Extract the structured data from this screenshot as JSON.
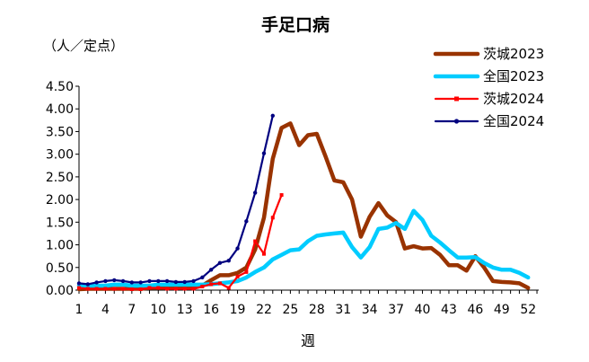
{
  "chart_data": {
    "type": "line",
    "title": "手足口病",
    "ylabel": "（人／定点）",
    "xlabel": "週",
    "ylim": [
      0,
      4.5
    ],
    "yticks": [
      "0.00",
      "0.50",
      "1.00",
      "1.50",
      "2.00",
      "2.50",
      "3.00",
      "3.50",
      "4.00",
      "4.50"
    ],
    "xticks": [
      "1",
      "4",
      "7",
      "10",
      "13",
      "16",
      "19",
      "22",
      "25",
      "28",
      "31",
      "34",
      "37",
      "40",
      "43",
      "46",
      "49",
      "52"
    ],
    "grid": false,
    "legend": "top-right",
    "series": [
      {
        "name": "茨城2023",
        "color": "#993300",
        "x": [
          1,
          2,
          3,
          4,
          5,
          6,
          7,
          8,
          9,
          10,
          11,
          12,
          13,
          14,
          15,
          16,
          17,
          18,
          19,
          20,
          21,
          22,
          23,
          24,
          25,
          26,
          27,
          28,
          29,
          30,
          31,
          32,
          33,
          34,
          35,
          36,
          37,
          38,
          39,
          40,
          41,
          42,
          43,
          44,
          45,
          46,
          47,
          48,
          49,
          50,
          51,
          52
        ],
        "values": [
          0.02,
          0.03,
          0.03,
          0.03,
          0.03,
          0.03,
          0.03,
          0.03,
          0.05,
          0.05,
          0.05,
          0.05,
          0.05,
          0.05,
          0.1,
          0.22,
          0.33,
          0.33,
          0.38,
          0.5,
          0.9,
          1.6,
          2.9,
          3.58,
          3.68,
          3.2,
          3.42,
          3.45,
          2.95,
          2.42,
          2.38,
          2.0,
          1.18,
          1.62,
          1.92,
          1.65,
          1.5,
          0.92,
          0.97,
          0.92,
          0.93,
          0.78,
          0.55,
          0.55,
          0.43,
          0.75,
          0.5,
          0.2,
          0.18,
          0.17,
          0.15,
          0.05
        ]
      },
      {
        "name": "全国2023",
        "color": "#00ccff",
        "x": [
          1,
          2,
          3,
          4,
          5,
          6,
          7,
          8,
          9,
          10,
          11,
          12,
          13,
          14,
          15,
          16,
          17,
          18,
          19,
          20,
          21,
          22,
          23,
          24,
          25,
          26,
          27,
          28,
          29,
          30,
          31,
          32,
          33,
          34,
          35,
          36,
          37,
          38,
          39,
          40,
          41,
          42,
          43,
          44,
          45,
          46,
          47,
          48,
          49,
          50,
          51,
          52
        ],
        "values": [
          0.1,
          0.1,
          0.1,
          0.1,
          0.12,
          0.12,
          0.1,
          0.1,
          0.1,
          0.12,
          0.12,
          0.12,
          0.12,
          0.12,
          0.12,
          0.13,
          0.15,
          0.17,
          0.2,
          0.28,
          0.4,
          0.5,
          0.68,
          0.78,
          0.88,
          0.9,
          1.08,
          1.2,
          1.23,
          1.25,
          1.27,
          0.95,
          0.72,
          0.95,
          1.35,
          1.38,
          1.48,
          1.35,
          1.75,
          1.55,
          1.2,
          1.05,
          0.88,
          0.72,
          0.72,
          0.73,
          0.6,
          0.5,
          0.45,
          0.45,
          0.38,
          0.28
        ]
      },
      {
        "name": "茨城2024",
        "color": "#ff0000",
        "x": [
          1,
          2,
          3,
          4,
          5,
          6,
          7,
          8,
          9,
          10,
          11,
          12,
          13,
          14,
          15,
          16,
          17,
          18,
          19,
          20,
          21,
          22,
          23,
          24
        ],
        "values": [
          0.05,
          0.03,
          0.03,
          0.03,
          0.03,
          0.03,
          0.02,
          0.02,
          0.05,
          0.05,
          0.03,
          0.03,
          0.03,
          0.03,
          0.08,
          0.13,
          0.15,
          0.05,
          0.3,
          0.4,
          1.08,
          0.8,
          1.6,
          2.1
        ]
      },
      {
        "name": "全国2024",
        "color": "#000080",
        "x": [
          1,
          2,
          3,
          4,
          5,
          6,
          7,
          8,
          9,
          10,
          11,
          12,
          13,
          14,
          15,
          16,
          17,
          18,
          19,
          20,
          21,
          22,
          23
        ],
        "values": [
          0.15,
          0.13,
          0.17,
          0.2,
          0.22,
          0.2,
          0.17,
          0.17,
          0.2,
          0.2,
          0.2,
          0.18,
          0.18,
          0.2,
          0.28,
          0.45,
          0.6,
          0.65,
          0.92,
          1.52,
          2.15,
          3.02,
          3.85
        ]
      }
    ]
  }
}
